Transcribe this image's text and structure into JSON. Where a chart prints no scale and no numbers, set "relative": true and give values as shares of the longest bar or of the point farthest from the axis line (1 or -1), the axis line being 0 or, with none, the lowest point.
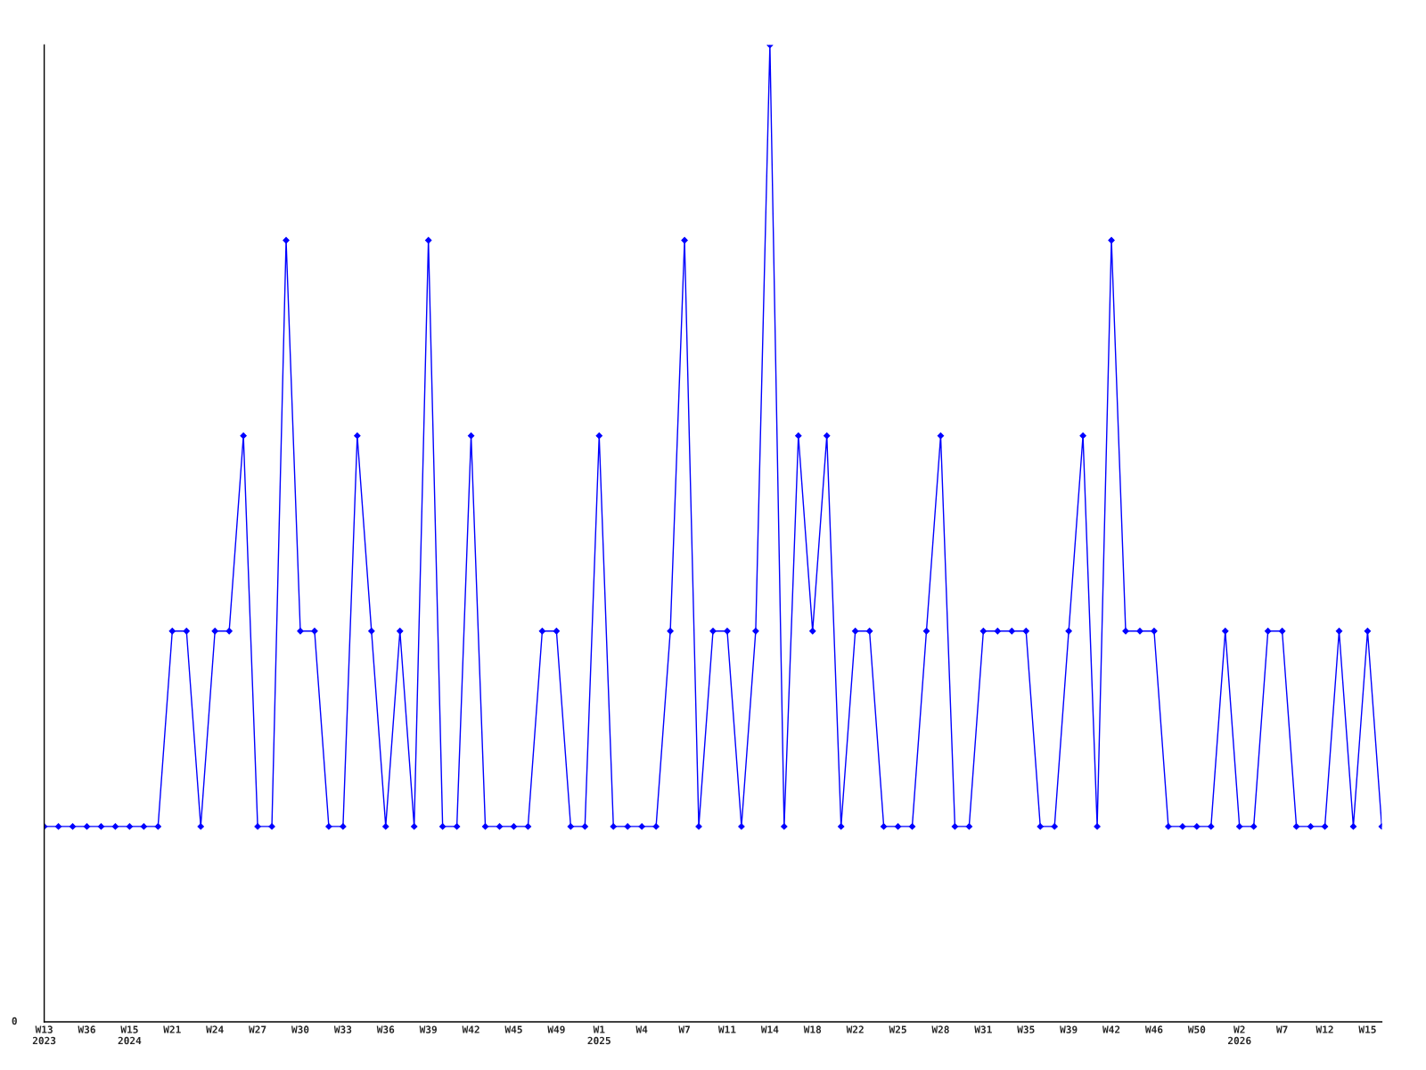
{
  "chart_data": {
    "type": "line",
    "relative": true,
    "marker": "diamond",
    "line_style": "solid",
    "annotations": [
      "0"
    ],
    "categories": [
      "W13\n2023",
      null,
      null,
      "W36",
      null,
      null,
      "W15\n2024",
      null,
      null,
      "W21",
      null,
      null,
      "W24",
      null,
      null,
      "W27",
      null,
      null,
      "W30",
      null,
      null,
      "W33",
      null,
      null,
      "W36",
      null,
      null,
      "W39",
      null,
      null,
      "W42",
      null,
      null,
      "W45",
      null,
      null,
      "W49",
      null,
      null,
      "W1\n2025",
      null,
      null,
      "W4",
      null,
      null,
      "W7",
      null,
      null,
      "W11",
      null,
      null,
      "W14",
      null,
      null,
      "W18",
      null,
      null,
      "W22",
      null,
      null,
      "W25",
      null,
      null,
      "W28",
      null,
      null,
      "W31",
      null,
      null,
      "W35",
      null,
      null,
      "W39",
      null,
      null,
      "W42",
      null,
      null,
      "W46",
      null,
      null,
      "W50",
      null,
      null,
      "W2\n2026",
      null,
      null,
      "W7",
      null,
      null,
      "W12",
      null,
      null,
      "W15",
      null
    ],
    "series": [
      {
        "color": "#0000ff",
        "values": [
          0.2,
          0.2,
          0.2,
          0.2,
          0.2,
          0.2,
          0.2,
          0.2,
          0.2,
          0.4,
          0.4,
          0.2,
          0.4,
          0.4,
          0.6,
          0.2,
          0.2,
          0.8,
          0.4,
          0.4,
          0.2,
          0.2,
          0.6,
          0.4,
          0.2,
          0.4,
          0.2,
          0.8,
          0.2,
          0.2,
          0.6,
          0.2,
          0.2,
          0.2,
          0.2,
          0.4,
          0.4,
          0.2,
          0.2,
          0.6,
          0.2,
          0.2,
          0.2,
          0.2,
          0.4,
          0.8,
          0.2,
          0.4,
          0.4,
          0.2,
          0.4,
          1.0,
          0.2,
          0.6,
          0.4,
          0.6,
          0.2,
          0.4,
          0.4,
          0.2,
          0.2,
          0.2,
          0.4,
          0.6,
          0.2,
          0.2,
          0.4,
          0.4,
          0.4,
          0.4,
          0.2,
          0.2,
          0.4,
          0.6,
          0.2,
          0.8,
          0.4,
          0.4,
          0.4,
          0.2,
          0.2,
          0.2,
          0.2,
          0.4,
          0.2,
          0.2,
          0.4,
          0.4,
          0.2,
          0.2,
          0.2,
          0.4,
          0.2,
          0.4,
          0.2
        ]
      }
    ]
  }
}
